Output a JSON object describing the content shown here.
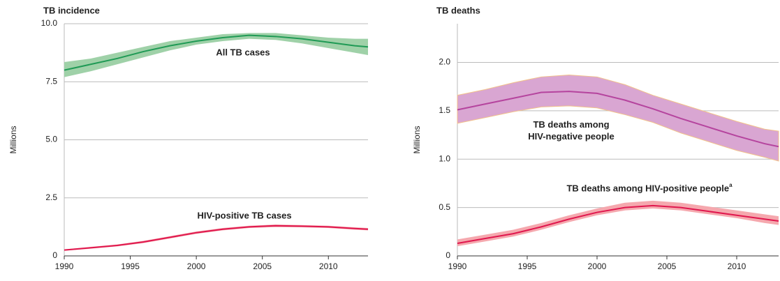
{
  "chart_data": [
    {
      "type": "line",
      "title": "TB incidence",
      "ylabel": "Millions",
      "x": [
        1990,
        1992,
        1994,
        1996,
        1998,
        2000,
        2002,
        2004,
        2006,
        2008,
        2010,
        2012,
        2013
      ],
      "xlim": [
        1990,
        2013
      ],
      "xticks": [
        1990,
        1995,
        2000,
        2005,
        2010
      ],
      "ylim": [
        0,
        10
      ],
      "yticks": [
        0,
        2.5,
        {
          "value": 5,
          "label": "5.0"
        },
        7.5,
        {
          "value": 10,
          "label": "10.0"
        }
      ],
      "grid": true,
      "series": [
        {
          "name": "All TB cases",
          "color": "#1f9a55",
          "band_color": "#9fd1a8",
          "values": [
            8.0,
            8.25,
            8.5,
            8.8,
            9.05,
            9.25,
            9.4,
            9.5,
            9.45,
            9.35,
            9.2,
            9.05,
            9.0
          ],
          "lower": [
            7.7,
            7.95,
            8.25,
            8.55,
            8.85,
            9.1,
            9.25,
            9.35,
            9.3,
            9.15,
            8.95,
            8.75,
            8.65
          ],
          "upper": [
            8.35,
            8.5,
            8.75,
            9.0,
            9.25,
            9.4,
            9.55,
            9.6,
            9.6,
            9.5,
            9.4,
            9.35,
            9.35
          ]
        },
        {
          "name": "HIV-positive TB cases",
          "color": "#e0174e",
          "band_color": "#f5a8ae",
          "values": [
            0.25,
            0.35,
            0.45,
            0.6,
            0.8,
            1.0,
            1.15,
            1.25,
            1.3,
            1.28,
            1.25,
            1.18,
            1.15
          ],
          "lower": [
            0.22,
            0.31,
            0.41,
            0.55,
            0.75,
            0.95,
            1.1,
            1.2,
            1.24,
            1.23,
            1.2,
            1.13,
            1.1
          ],
          "upper": [
            0.28,
            0.39,
            0.49,
            0.65,
            0.85,
            1.05,
            1.2,
            1.3,
            1.35,
            1.33,
            1.3,
            1.23,
            1.2
          ]
        }
      ]
    },
    {
      "type": "line",
      "title": "TB deaths",
      "ylabel": "Millions",
      "x": [
        1990,
        1992,
        1994,
        1996,
        1998,
        2000,
        2002,
        2004,
        2006,
        2008,
        2010,
        2012,
        2013
      ],
      "xlim": [
        1990,
        2013
      ],
      "xticks": [
        1990,
        1995,
        2000,
        2005,
        2010
      ],
      "ylim": [
        0,
        2.4
      ],
      "yticks": [
        0,
        0.5,
        {
          "value": 1,
          "label": "1.0"
        },
        1.5,
        {
          "value": 2,
          "label": "2.0"
        }
      ],
      "grid": true,
      "series": [
        {
          "name": "TB deaths among HIV-negative people",
          "color": "#b5449e",
          "band_color": "#d9a6d2",
          "values": [
            1.51,
            1.57,
            1.63,
            1.69,
            1.7,
            1.68,
            1.61,
            1.52,
            1.42,
            1.33,
            1.24,
            1.16,
            1.13
          ],
          "lower": [
            1.37,
            1.43,
            1.49,
            1.54,
            1.55,
            1.53,
            1.46,
            1.38,
            1.27,
            1.18,
            1.09,
            1.02,
            0.98
          ],
          "upper": [
            1.66,
            1.72,
            1.79,
            1.85,
            1.87,
            1.85,
            1.77,
            1.66,
            1.57,
            1.48,
            1.39,
            1.31,
            1.29
          ]
        },
        {
          "name": "TB deaths among HIV-positive people",
          "footnote_mark": "a",
          "color": "#e0174e",
          "band_color": "#f5a8ae",
          "values": [
            0.13,
            0.18,
            0.23,
            0.3,
            0.38,
            0.45,
            0.5,
            0.52,
            0.5,
            0.46,
            0.42,
            0.38,
            0.36
          ],
          "lower": [
            0.1,
            0.15,
            0.2,
            0.27,
            0.35,
            0.42,
            0.47,
            0.49,
            0.47,
            0.43,
            0.39,
            0.34,
            0.32
          ],
          "upper": [
            0.17,
            0.22,
            0.27,
            0.34,
            0.42,
            0.49,
            0.55,
            0.57,
            0.55,
            0.51,
            0.47,
            0.43,
            0.41
          ]
        }
      ]
    }
  ]
}
